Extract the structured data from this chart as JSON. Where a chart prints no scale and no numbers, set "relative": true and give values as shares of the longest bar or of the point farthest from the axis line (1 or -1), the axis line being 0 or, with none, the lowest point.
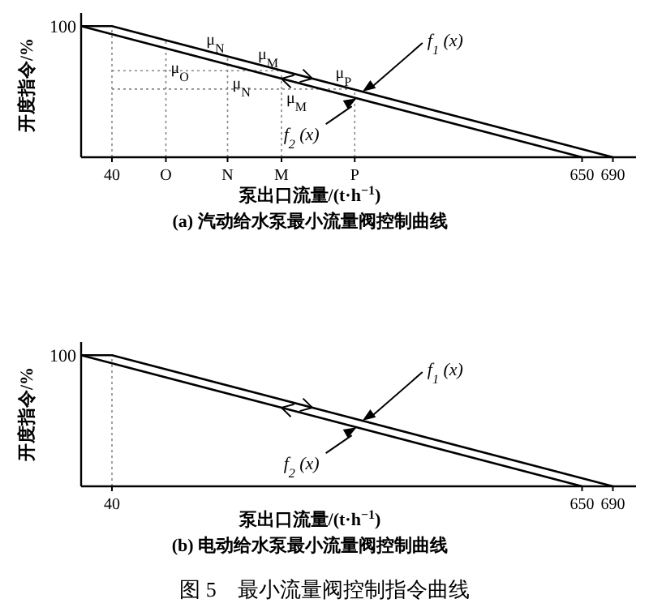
{
  "chart_data": [
    {
      "type": "line",
      "title": "(a) 汽动给水泵最小流量阀控制曲线",
      "xlabel": "泵出口流量/(t·h$^{−1}$)",
      "ylabel": "开度指令/%",
      "relative": true,
      "xlim": [
        0,
        720
      ],
      "xticks": [
        40,
        {
          "value": 110,
          "label": "O"
        },
        {
          "value": 190,
          "label": "N"
        },
        {
          "value": 260,
          "label": "M"
        },
        {
          "value": 355,
          "label": "P"
        },
        650,
        690
      ],
      "series": [
        {
          "name": "f$_{1}$ (x)",
          "color": "#000000",
          "x": [
            0,
            40,
            690
          ],
          "values": [
            1,
            1,
            0
          ]
        },
        {
          "name": "f$_{2}$ (x)",
          "color": "#000000",
          "x": [
            0,
            650
          ],
          "values": [
            1,
            0
          ]
        }
      ],
      "ref_lines": [
        {
          "axis": "x",
          "value": 40,
          "line_style": "dotted",
          "color": "#888888"
        },
        {
          "axis": "x",
          "value": 110,
          "line_style": "dotted",
          "color": "#888888"
        },
        {
          "axis": "x",
          "value": 190,
          "line_style": "dotted",
          "color": "#888888"
        },
        {
          "axis": "x",
          "value": 260,
          "line_style": "dotted",
          "color": "#888888"
        },
        {
          "axis": "x",
          "value": 355,
          "line_style": "dotted",
          "color": "#888888"
        },
        {
          "axis": "y",
          "value": 0.66,
          "line_style": "dotted",
          "color": "#888888"
        },
        {
          "axis": "y",
          "value": 0.52,
          "line_style": "dotted",
          "color": "#888888"
        }
      ],
      "annotations": [
        {
          "text": "100",
          "x": 0,
          "y": 1
        },
        {
          "text": "μ$_{N}$",
          "x": 190,
          "y": 0.77
        },
        {
          "text": "μ$_{M}$",
          "x": 260,
          "y": 0.66
        },
        {
          "text": "μ$_{P}$",
          "x": 355,
          "y": 0.52
        },
        {
          "text": "μ$_{O}$",
          "x": 110,
          "y": 0.83
        },
        {
          "text": "μ$_{N}$",
          "x": 190,
          "y": 0.71
        },
        {
          "text": "μ$_{M}$",
          "x": 260,
          "y": 0.6
        }
      ]
    },
    {
      "type": "line",
      "title": "(b) 电动给水泵最小流量阀控制曲线",
      "xlabel": "泵出口流量/(t·h$^{−1}$)",
      "ylabel": "开度指令/%",
      "relative": true,
      "xlim": [
        0,
        720
      ],
      "xticks": [
        40,
        650,
        690
      ],
      "series": [
        {
          "name": "f$_{1}$ (x)",
          "color": "#000000",
          "x": [
            0,
            40,
            690
          ],
          "values": [
            1,
            1,
            0
          ]
        },
        {
          "name": "f$_{2}$ (x)",
          "color": "#000000",
          "x": [
            0,
            650
          ],
          "values": [
            1,
            0
          ]
        }
      ],
      "ref_lines": [
        {
          "axis": "x",
          "value": 40,
          "line_style": "dotted",
          "color": "#888888"
        }
      ],
      "annotations": [
        {
          "text": "100",
          "x": 0,
          "y": 1
        },
        "图 5　最小流量阀控制指令曲线"
      ]
    }
  ]
}
